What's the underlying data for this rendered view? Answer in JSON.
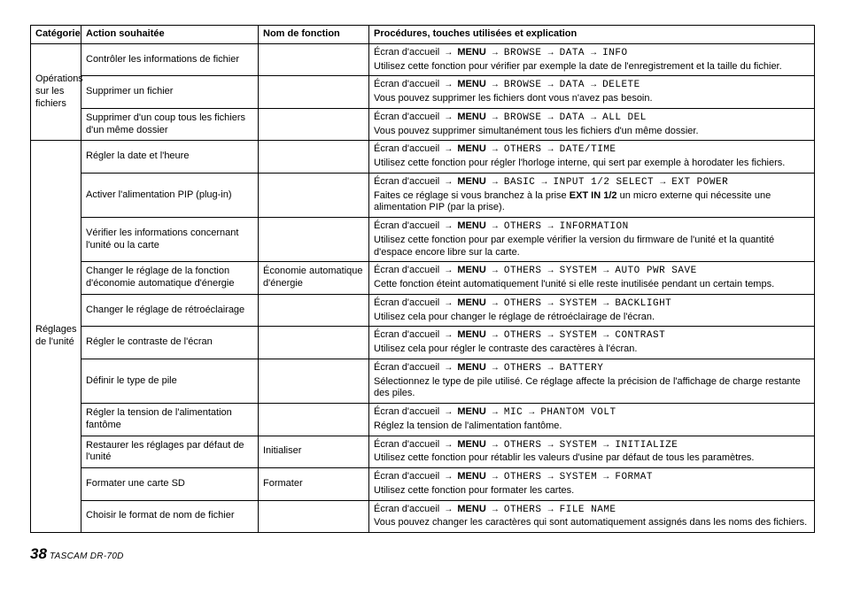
{
  "headers": {
    "cat": "Catégorie",
    "action": "Action souhaitée",
    "fn": "Nom de fonction",
    "proc": "Procédures, touches utilisées et explication"
  },
  "cat1": "Opérations sur les fichiers",
  "cat2": "Réglages de l'unité",
  "footer": {
    "page": "38",
    "model": "TASCAM DR-70D"
  },
  "arrow": "→",
  "r": [
    {
      "action": "Contrôler les informations de fichier",
      "fn": "",
      "path": [
        "Écran d'accueil",
        "MENU",
        "BROWSE",
        "DATA",
        "INFO"
      ],
      "desc": "Utilisez cette fonction pour vérifier par exemple la date de l'enregistrement et la taille du fichier."
    },
    {
      "action": "Supprimer un fichier",
      "fn": "",
      "path": [
        "Écran d'accueil",
        "MENU",
        "BROWSE",
        "DATA",
        "DELETE"
      ],
      "desc": "Vous pouvez supprimer les fichiers dont vous n'avez pas besoin."
    },
    {
      "action": "Supprimer d'un coup tous les fichiers d'un même dossier",
      "fn": "",
      "path": [
        "Écran d'accueil",
        "MENU",
        "BROWSE",
        "DATA",
        "ALL DEL"
      ],
      "desc": "Vous pouvez supprimer simultanément tous les fichiers d'un même dossier."
    },
    {
      "action": "Régler la date et l'heure",
      "fn": "",
      "path": [
        "Écran d'accueil",
        "MENU",
        "OTHERS",
        "DATE/TIME"
      ],
      "desc": "Utilisez cette fonction pour régler l'horloge interne, qui sert par exemple à horodater les fichiers."
    },
    {
      "action": "Activer l'alimentation PIP (plug-in)",
      "fn": "",
      "path": [
        "Écran d'accueil",
        "MENU",
        "BASIC",
        "INPUT 1/2 SELECT",
        "EXT POWER"
      ],
      "desc": "Faites ce réglage si vous branchez à la prise <b>EXT IN 1/2</b> un micro externe qui nécessite une alimentation PIP (par la prise).",
      "descHtml": true
    },
    {
      "action": "Vérifier les informations concernant l'unité ou la carte",
      "fn": "",
      "path": [
        "Écran d'accueil",
        "MENU",
        "OTHERS",
        "INFORMATION"
      ],
      "desc": "Utilisez cette fonction pour par exemple vérifier la version du firmware de l'unité et la quantité d'espace encore libre sur la carte."
    },
    {
      "action": "Changer le réglage de la fonction d'économie automatique d'énergie",
      "fn": "Économie automatique d'énergie",
      "path": [
        "Écran d'accueil",
        "MENU",
        "OTHERS",
        "SYSTEM",
        "AUTO PWR SAVE"
      ],
      "desc": "Cette fonction éteint automatiquement l'unité si elle reste inutilisée pendant un certain temps."
    },
    {
      "action": "Changer le réglage de rétroéclairage",
      "fn": "",
      "path": [
        "Écran d'accueil",
        "MENU",
        "OTHERS",
        "SYSTEM",
        "BACKLIGHT"
      ],
      "desc": "Utilisez cela pour changer le réglage de rétroéclairage de l'écran."
    },
    {
      "action": "Régler le contraste de l'écran",
      "fn": "",
      "path": [
        "Écran d'accueil",
        "MENU",
        "OTHERS",
        "SYSTEM",
        "CONTRAST"
      ],
      "desc": "Utilisez cela pour régler le contraste des caractères à l'écran."
    },
    {
      "action": "Définir le type de pile",
      "fn": "",
      "path": [
        "Écran d'accueil",
        "MENU",
        "OTHERS",
        "BATTERY"
      ],
      "desc": "Sélectionnez le type de pile utilisé. Ce réglage affecte la précision de l'affichage de charge restante des piles."
    },
    {
      "action": "Régler la tension de l'alimentation fantôme",
      "fn": "",
      "path": [
        "Écran d'accueil",
        "MENU",
        "MIC",
        "PHANTOM VOLT"
      ],
      "desc": "Réglez la tension de l'alimentation fantôme."
    },
    {
      "action": "Restaurer les réglages par défaut de l'unité",
      "fn": "Initialiser",
      "path": [
        "Écran d'accueil",
        "MENU",
        "OTHERS",
        "SYSTEM",
        "INITIALIZE"
      ],
      "desc": "Utilisez cette fonction pour rétablir les valeurs d'usine par défaut de tous les paramètres."
    },
    {
      "action": "Formater une carte SD",
      "fn": "Formater",
      "path": [
        "Écran d'accueil",
        "MENU",
        "OTHERS",
        "SYSTEM",
        "FORMAT"
      ],
      "desc": "Utilisez cette fonction pour formater les cartes."
    },
    {
      "action": "Choisir le format de nom de fichier",
      "fn": "",
      "path": [
        "Écran d'accueil",
        "MENU",
        "OTHERS",
        "FILE NAME"
      ],
      "desc": "Vous pouvez changer les caractères qui sont automatiquement assignés dans les noms des fichiers."
    }
  ]
}
